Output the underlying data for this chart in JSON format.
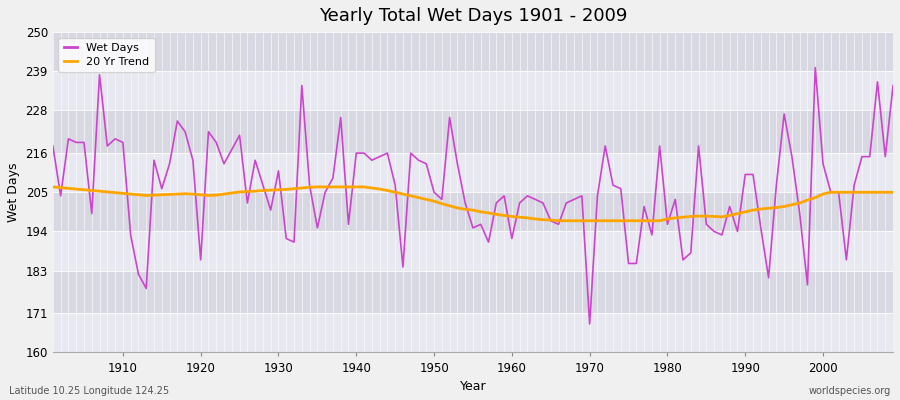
{
  "title": "Yearly Total Wet Days 1901 - 2009",
  "xlabel": "Year",
  "ylabel": "Wet Days",
  "subtitle": "Latitude 10.25 Longitude 124.25",
  "watermark": "worldspecies.org",
  "ylim": [
    160,
    250
  ],
  "yticks": [
    160,
    171,
    183,
    194,
    205,
    216,
    228,
    239,
    250
  ],
  "xlim": [
    1901,
    2009
  ],
  "xticks": [
    1910,
    1920,
    1930,
    1940,
    1950,
    1960,
    1970,
    1980,
    1990,
    2000
  ],
  "wet_days_color": "#cc44cc",
  "trend_color": "#ffa500",
  "bg_color_light": "#ebebeb",
  "bg_color_dark": "#d8d8e0",
  "grid_color": "#ffffff",
  "wet_days": [
    218,
    204,
    220,
    219,
    219,
    199,
    238,
    218,
    220,
    219,
    193,
    182,
    178,
    214,
    206,
    213,
    225,
    222,
    214,
    186,
    222,
    219,
    213,
    217,
    221,
    202,
    214,
    207,
    200,
    211,
    192,
    191,
    235,
    207,
    195,
    205,
    209,
    226,
    196,
    216,
    216,
    214,
    215,
    216,
    207,
    184,
    216,
    214,
    213,
    205,
    203,
    226,
    213,
    202,
    195,
    196,
    191,
    202,
    204,
    192,
    202,
    204,
    203,
    202,
    197,
    196,
    202,
    203,
    204,
    168,
    204,
    218,
    207,
    206,
    185,
    185,
    201,
    193,
    218,
    196,
    203,
    186,
    188,
    218,
    196,
    194,
    193,
    201,
    194,
    210,
    210,
    195,
    181,
    207,
    227,
    215,
    199,
    179,
    240,
    213,
    205,
    205,
    186,
    207,
    215,
    215,
    236,
    215,
    235
  ],
  "trend": [
    206.5,
    206.3,
    206.1,
    205.9,
    205.7,
    205.5,
    205.3,
    205.1,
    204.9,
    204.7,
    204.5,
    204.3,
    204.1,
    204.2,
    204.3,
    204.4,
    204.5,
    204.6,
    204.5,
    204.3,
    204.1,
    204.2,
    204.5,
    204.8,
    205.1,
    205.2,
    205.3,
    205.5,
    205.6,
    205.7,
    205.8,
    206.0,
    206.2,
    206.4,
    206.5,
    206.5,
    206.5,
    206.5,
    206.5,
    206.5,
    206.5,
    206.2,
    205.9,
    205.5,
    205.0,
    204.5,
    204.0,
    203.5,
    203.0,
    202.5,
    201.8,
    201.2,
    200.6,
    200.2,
    200.0,
    199.5,
    199.2,
    198.8,
    198.5,
    198.2,
    198.0,
    197.8,
    197.5,
    197.3,
    197.2,
    197.0,
    197.0,
    197.0,
    197.0,
    197.0,
    197.0,
    197.0,
    197.0,
    197.0,
    197.0,
    197.0,
    197.0,
    197.0,
    197.0,
    197.5,
    197.8,
    198.0,
    198.2,
    198.3,
    198.3,
    198.2,
    198.1,
    198.5,
    199.0,
    199.5,
    200.0,
    200.3,
    200.5,
    200.7,
    201.0,
    201.5,
    202.0,
    202.8,
    203.5,
    204.5,
    205.0,
    205.0,
    205.0,
    205.0,
    205.0,
    205.0,
    205.0,
    205.0,
    205.0
  ]
}
